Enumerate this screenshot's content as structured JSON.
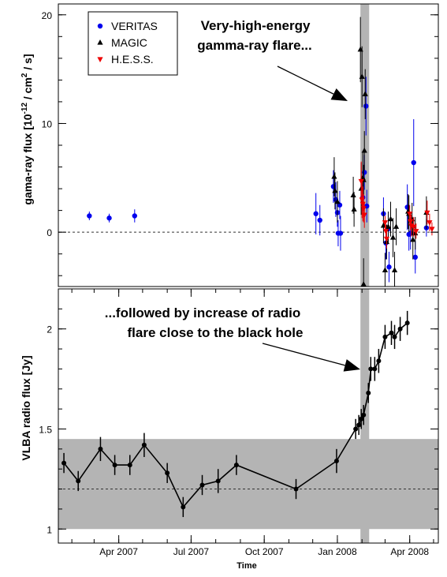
{
  "chart_data": [
    {
      "type": "scatter",
      "panel": "top",
      "ylabel_main": "gama-ray flux [10",
      "ylabel_exp": "-12",
      "ylabel_unit": " / cm",
      "ylabel_exp2": "2",
      "ylabel_tail": " / s]",
      "ylim": [
        -5,
        21
      ],
      "yticks": [
        0,
        10,
        20
      ],
      "ytick_labels": [
        "0",
        "10",
        "20"
      ],
      "reference_line": 0,
      "grid": false,
      "legend_position": "top-left",
      "annotation": [
        "Very-high-energy",
        "gamma-ray flare..."
      ],
      "series": [
        {
          "name": "VERITAS",
          "color": "#0000ee",
          "marker": "circle",
          "points": [
            {
              "x": "2007-02-23",
              "y": 1.5,
              "err": 0.4
            },
            {
              "x": "2007-03-20",
              "y": 1.3,
              "err": 0.4
            },
            {
              "x": "2007-04-21",
              "y": 1.5,
              "err": 0.6
            },
            {
              "x": "2007-12-05",
              "y": 1.7,
              "err": 1.9
            },
            {
              "x": "2007-12-10",
              "y": 1.1,
              "err": 1.4
            },
            {
              "x": "2007-12-27",
              "y": 4.2,
              "err": 1.5
            },
            {
              "x": "2007-12-30",
              "y": 3.0,
              "err": 1.6
            },
            {
              "x": "2008-01-01",
              "y": 1.8,
              "err": 1.3
            },
            {
              "x": "2008-01-02",
              "y": -0.1,
              "err": 1.2
            },
            {
              "x": "2008-01-04",
              "y": 2.5,
              "err": 1.3
            },
            {
              "x": "2008-01-05",
              "y": -0.1,
              "err": 1.6
            },
            {
              "x": "2008-02-02",
              "y": 3.2,
              "err": 1.3
            },
            {
              "x": "2008-02-04",
              "y": 5.5,
              "err": 1.6
            },
            {
              "x": "2008-02-06",
              "y": 11.6,
              "err": 2.7
            },
            {
              "x": "2008-02-07",
              "y": 2.4,
              "err": 1.5
            },
            {
              "x": "2008-02-28",
              "y": 1.7,
              "err": 1.5
            },
            {
              "x": "2008-03-02",
              "y": -1.0,
              "err": 1.5
            },
            {
              "x": "2008-03-05",
              "y": 0.3,
              "err": 1.3
            },
            {
              "x": "2008-03-06",
              "y": -3.2,
              "err": 1.4
            },
            {
              "x": "2008-03-29",
              "y": 2.3,
              "err": 2.1
            },
            {
              "x": "2008-03-31",
              "y": -0.2,
              "err": 1.5
            },
            {
              "x": "2008-04-02",
              "y": -0.1,
              "err": 1.5
            },
            {
              "x": "2008-04-06",
              "y": 6.4,
              "err": 4.0
            },
            {
              "x": "2008-04-08",
              "y": -2.3,
              "err": 1.5
            },
            {
              "x": "2008-04-22",
              "y": 0.4,
              "err": 0.8
            }
          ]
        },
        {
          "name": "MAGIC",
          "color": "#000000",
          "marker": "triangle-up",
          "points": [
            {
              "x": "2007-12-28",
              "y": 5.1,
              "err": 1.8
            },
            {
              "x": "2007-12-29",
              "y": 3.8,
              "err": 1.7
            },
            {
              "x": "2008-01-01",
              "y": 2.8,
              "err": 1.9
            },
            {
              "x": "2008-01-21",
              "y": 3.4,
              "err": 1.7
            },
            {
              "x": "2008-01-22",
              "y": 2.1,
              "err": 1.6
            },
            {
              "x": "2008-01-30",
              "y": 16.8,
              "err": 3.0
            },
            {
              "x": "2008-01-31",
              "y": 4.0,
              "err": 2.4
            },
            {
              "x": "2008-02-01",
              "y": 14.3,
              "err": 2.8
            },
            {
              "x": "2008-02-02",
              "y": 5.0,
              "err": 2.3
            },
            {
              "x": "2008-02-03",
              "y": 4.8,
              "err": 1.4
            },
            {
              "x": "2008-02-03",
              "y": -4.8,
              "err": 2.4
            },
            {
              "x": "2008-02-04",
              "y": 7.5,
              "err": 1.8
            },
            {
              "x": "2008-02-05",
              "y": 12.7,
              "err": 2.3
            },
            {
              "x": "2008-02-28",
              "y": 0.6,
              "err": 1.6
            },
            {
              "x": "2008-03-01",
              "y": -3.5,
              "err": 1.6
            },
            {
              "x": "2008-03-03",
              "y": -0.9,
              "err": 1.6
            },
            {
              "x": "2008-03-05",
              "y": 0.5,
              "err": 1.4
            },
            {
              "x": "2008-03-08",
              "y": 1.2,
              "err": 1.6
            },
            {
              "x": "2008-03-11",
              "y": -0.5,
              "err": 1.8
            },
            {
              "x": "2008-03-13",
              "y": -3.5,
              "err": 1.7
            },
            {
              "x": "2008-03-15",
              "y": 0.5,
              "err": 1.7
            },
            {
              "x": "2008-03-30",
              "y": 1.9,
              "err": 1.6
            },
            {
              "x": "2008-03-31",
              "y": 1.7,
              "err": 1.7
            },
            {
              "x": "2008-04-04",
              "y": 1.2,
              "err": 1.5
            },
            {
              "x": "2008-04-05",
              "y": -0.7,
              "err": 1.8
            },
            {
              "x": "2008-04-08",
              "y": -0.1,
              "err": 1.5
            },
            {
              "x": "2008-04-22",
              "y": 1.8,
              "err": 1.5
            }
          ]
        },
        {
          "name": "H.E.S.S.",
          "color": "#ee0000",
          "marker": "triangle-down",
          "points": [
            {
              "x": "2008-01-31",
              "y": 4.7,
              "err": 1.8
            },
            {
              "x": "2008-02-01",
              "y": 3.0,
              "err": 1.7
            },
            {
              "x": "2008-02-02",
              "y": 2.6,
              "err": 1.6
            },
            {
              "x": "2008-02-03",
              "y": 2.2,
              "err": 1.3
            },
            {
              "x": "2008-02-04",
              "y": 1.6,
              "err": 1.2
            },
            {
              "x": "2008-03-01",
              "y": 0.9,
              "err": 0.6
            },
            {
              "x": "2008-03-02",
              "y": 0.1,
              "err": 0.6
            },
            {
              "x": "2008-03-03",
              "y": -0.6,
              "err": 0.9
            },
            {
              "x": "2008-04-01",
              "y": 1.7,
              "err": 0.8
            },
            {
              "x": "2008-04-02",
              "y": 1.0,
              "err": 0.8
            },
            {
              "x": "2008-04-03",
              "y": 0.6,
              "err": 1.0
            },
            {
              "x": "2008-04-06",
              "y": 0.5,
              "err": 0.9
            },
            {
              "x": "2008-04-09",
              "y": 0.1,
              "err": 0.7
            },
            {
              "x": "2008-04-23",
              "y": 1.8,
              "err": 1.1
            },
            {
              "x": "2008-04-26",
              "y": 0.9,
              "err": 0.8
            },
            {
              "x": "2008-04-29",
              "y": 0.3,
              "err": 0.6
            }
          ]
        }
      ]
    },
    {
      "type": "line",
      "panel": "bottom",
      "ylabel": "VLBA radio flux [Jy]",
      "xlabel": "Time",
      "ylim": [
        0.93,
        2.2
      ],
      "yticks": [
        1,
        1.5,
        2
      ],
      "ytick_labels": [
        "1",
        "1.5",
        "2"
      ],
      "reference_line": 1.2,
      "band": [
        1.0,
        1.45
      ],
      "grid": false,
      "annotation": [
        "...followed by increase of radio",
        "flare close to the black hole"
      ],
      "series": [
        {
          "name": "",
          "color": "#000000",
          "points": [
            {
              "x": "2007-01-22",
              "y": 1.33,
              "err": 0.05
            },
            {
              "x": "2007-02-09",
              "y": 1.24,
              "err": 0.05
            },
            {
              "x": "2007-03-09",
              "y": 1.4,
              "err": 0.06
            },
            {
              "x": "2007-03-27",
              "y": 1.32,
              "err": 0.05
            },
            {
              "x": "2007-04-15",
              "y": 1.32,
              "err": 0.05
            },
            {
              "x": "2007-05-03",
              "y": 1.42,
              "err": 0.06
            },
            {
              "x": "2007-06-01",
              "y": 1.28,
              "err": 0.05
            },
            {
              "x": "2007-06-21",
              "y": 1.11,
              "err": 0.05
            },
            {
              "x": "2007-07-15",
              "y": 1.22,
              "err": 0.05
            },
            {
              "x": "2007-08-04",
              "y": 1.24,
              "err": 0.06
            },
            {
              "x": "2007-08-27",
              "y": 1.32,
              "err": 0.05
            },
            {
              "x": "2007-11-10",
              "y": 1.2,
              "err": 0.05
            },
            {
              "x": "2007-12-31",
              "y": 1.34,
              "err": 0.06
            },
            {
              "x": "2008-01-24",
              "y": 1.5,
              "err": 0.05
            },
            {
              "x": "2008-01-28",
              "y": 1.52,
              "err": 0.05
            },
            {
              "x": "2008-01-31",
              "y": 1.55,
              "err": 0.05
            },
            {
              "x": "2008-02-03",
              "y": 1.57,
              "err": 0.05
            },
            {
              "x": "2008-02-09",
              "y": 1.68,
              "err": 0.05
            },
            {
              "x": "2008-02-12",
              "y": 1.8,
              "err": 0.06
            },
            {
              "x": "2008-02-17",
              "y": 1.8,
              "err": 0.06
            },
            {
              "x": "2008-02-22",
              "y": 1.84,
              "err": 0.06
            },
            {
              "x": "2008-03-01",
              "y": 1.96,
              "err": 0.06
            },
            {
              "x": "2008-03-09",
              "y": 1.98,
              "err": 0.06
            },
            {
              "x": "2008-03-13",
              "y": 1.96,
              "err": 0.06
            },
            {
              "x": "2008-03-20",
              "y": 2.0,
              "err": 0.06
            },
            {
              "x": "2008-03-29",
              "y": 2.03,
              "err": 0.06
            }
          ]
        }
      ]
    }
  ],
  "x_axis": {
    "range": [
      "2007-01-15",
      "2008-05-07"
    ],
    "ticks": [
      "2007-04-01",
      "2007-07-01",
      "2007-10-01",
      "2008-01-01",
      "2008-04-01"
    ],
    "tick_labels": [
      "Apr 2007",
      "Jul 2007",
      "Oct 2007",
      "Jan 2008",
      "Apr 2008"
    ],
    "label": "Time"
  },
  "highlight": {
    "start": "2008-01-30",
    "end": "2008-02-10",
    "color": "#b4b4b4"
  }
}
